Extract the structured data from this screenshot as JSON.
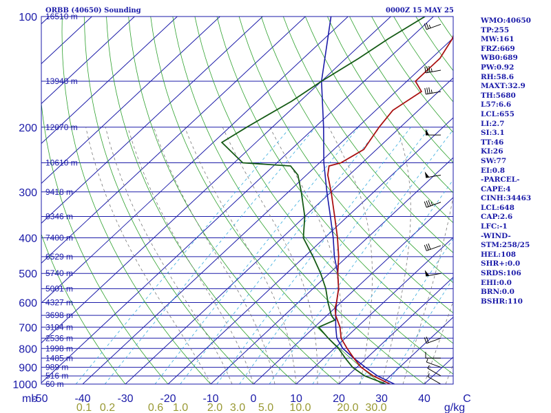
{
  "header": {
    "station": "ORBB (40650) Sounding",
    "time": "0000Z 15 MAY 25"
  },
  "indices": [
    "WMO:40650",
    "TP:255",
    "MW:161",
    "FRZ:669",
    "WB0:689",
    "PW:0.92",
    "RH:58.6",
    "MAXT:32.9",
    "TH:5680",
    "L57:6.6",
    "LCL:655",
    "LI:2.7",
    "SI:3.1",
    "TT:46",
    "KI:26",
    "SW:77",
    "EI:0.8",
    "-PARCEL-",
    "CAPE:4",
    "CINH:34463",
    "LCL:648",
    "CAP:2.6",
    "LFC:-1",
    "-WIND-",
    "STM:258/25",
    "HEL:108",
    "SHR+:0.0",
    "SRDS:106",
    "EHI:0.0",
    "BRN:0.0",
    "BSHR:110"
  ],
  "chart_data": {
    "type": "line",
    "title": "ORBB (40650) Sounding",
    "subtitle": "0000Z 15 MAY 25",
    "pressure_axis_unit": "mb",
    "pressure_ticks": [
      100,
      200,
      300,
      400,
      500,
      600,
      700,
      800,
      900,
      1000
    ],
    "temperature_ticks": [
      "-50",
      "-40",
      "-30",
      "-20",
      "-10",
      "0",
      "10",
      "20",
      "30",
      "40",
      "C"
    ],
    "mixing_ratio_unit": "g/kg",
    "mixing_ratio_labels": [
      "0.1",
      "0.2",
      "0.6",
      "1.0",
      "2.0",
      "3.0",
      "5.0",
      "10.0",
      "20.0",
      "30.0"
    ],
    "height_labels": [
      {
        "p": 100,
        "label": "16510 m"
      },
      {
        "p": 150,
        "label": "13940 m"
      },
      {
        "p": 200,
        "label": "12070 m"
      },
      {
        "p": 250,
        "label": "10610 m"
      },
      {
        "p": 300,
        "label": "9418 m"
      },
      {
        "p": 350,
        "label": "8346 m"
      },
      {
        "p": 400,
        "label": "7400 m"
      },
      {
        "p": 450,
        "label": "6529 m"
      },
      {
        "p": 500,
        "label": "5740 m"
      },
      {
        "p": 550,
        "label": "5001 m"
      },
      {
        "p": 600,
        "label": "4327 m"
      },
      {
        "p": 650,
        "label": "3698 m"
      },
      {
        "p": 700,
        "label": "3104 m"
      },
      {
        "p": 750,
        "label": "2536 m"
      },
      {
        "p": 800,
        "label": "1998 m"
      },
      {
        "p": 850,
        "label": "1485 m"
      },
      {
        "p": 900,
        "label": "989 m"
      },
      {
        "p": 950,
        "label": "516 m"
      },
      {
        "p": 1000,
        "label": "60 m"
      }
    ],
    "temperature_profile": [
      {
        "p": 1000,
        "t": 32
      },
      {
        "p": 950,
        "t": 26
      },
      {
        "p": 900,
        "t": 21
      },
      {
        "p": 850,
        "t": 17
      },
      {
        "p": 800,
        "t": 13
      },
      {
        "p": 750,
        "t": 9
      },
      {
        "p": 700,
        "t": 6
      },
      {
        "p": 650,
        "t": 2
      },
      {
        "p": 620,
        "t": 0
      },
      {
        "p": 600,
        "t": -1
      },
      {
        "p": 550,
        "t": -4
      },
      {
        "p": 500,
        "t": -8
      },
      {
        "p": 450,
        "t": -12
      },
      {
        "p": 400,
        "t": -17
      },
      {
        "p": 350,
        "t": -23
      },
      {
        "p": 300,
        "t": -30
      },
      {
        "p": 270,
        "t": -35
      },
      {
        "p": 255,
        "t": -37
      },
      {
        "p": 250,
        "t": -35
      },
      {
        "p": 230,
        "t": -33
      },
      {
        "p": 200,
        "t": -35
      },
      {
        "p": 180,
        "t": -36
      },
      {
        "p": 160,
        "t": -34
      },
      {
        "p": 150,
        "t": -38
      },
      {
        "p": 130,
        "t": -38
      },
      {
        "p": 115,
        "t": -40
      },
      {
        "p": 100,
        "t": -44
      }
    ],
    "dewpoint_profile": [
      {
        "p": 1000,
        "td": 31
      },
      {
        "p": 950,
        "td": 24
      },
      {
        "p": 900,
        "td": 19
      },
      {
        "p": 850,
        "td": 15
      },
      {
        "p": 800,
        "td": 11
      },
      {
        "p": 750,
        "td": 6
      },
      {
        "p": 700,
        "td": 1
      },
      {
        "p": 670,
        "td": 3
      },
      {
        "p": 650,
        "td": 1
      },
      {
        "p": 600,
        "td": -3
      },
      {
        "p": 550,
        "td": -7
      },
      {
        "p": 500,
        "td": -12
      },
      {
        "p": 450,
        "td": -18
      },
      {
        "p": 400,
        "td": -25
      },
      {
        "p": 350,
        "td": -30
      },
      {
        "p": 300,
        "td": -37
      },
      {
        "p": 270,
        "td": -42
      },
      {
        "p": 255,
        "td": -46
      },
      {
        "p": 250,
        "td": -58
      },
      {
        "p": 220,
        "td": -68
      },
      {
        "p": 200,
        "td": -66
      },
      {
        "p": 170,
        "td": -62
      },
      {
        "p": 150,
        "td": -60
      },
      {
        "p": 130,
        "td": -57
      },
      {
        "p": 115,
        "td": -55
      },
      {
        "p": 100,
        "td": -52
      }
    ],
    "parcel_path": [
      {
        "p": 1000,
        "t": 33
      },
      {
        "p": 950,
        "t": 27
      },
      {
        "p": 900,
        "t": 22
      },
      {
        "p": 850,
        "t": 17
      },
      {
        "p": 800,
        "t": 12
      },
      {
        "p": 750,
        "t": 8
      },
      {
        "p": 700,
        "t": 5
      },
      {
        "p": 650,
        "t": 2
      },
      {
        "p": 600,
        "t": -1
      },
      {
        "p": 550,
        "t": -4
      },
      {
        "p": 500,
        "t": -8
      },
      {
        "p": 450,
        "t": -13
      },
      {
        "p": 400,
        "t": -18
      },
      {
        "p": 350,
        "t": -24
      },
      {
        "p": 300,
        "t": -31
      },
      {
        "p": 250,
        "t": -39
      },
      {
        "p": 200,
        "t": -48
      },
      {
        "p": 150,
        "t": -60
      },
      {
        "p": 100,
        "t": -74
      }
    ],
    "wind_barbs": [
      {
        "p": 1000,
        "dir": 300,
        "spd": 5
      },
      {
        "p": 950,
        "dir": 300,
        "spd": 5
      },
      {
        "p": 900,
        "dir": 290,
        "spd": 5
      },
      {
        "p": 850,
        "dir": 270,
        "spd": 10
      },
      {
        "p": 750,
        "dir": 250,
        "spd": 20
      },
      {
        "p": 500,
        "dir": 260,
        "spd": 50
      },
      {
        "p": 420,
        "dir": 250,
        "spd": 30
      },
      {
        "p": 320,
        "dir": 250,
        "spd": 35
      },
      {
        "p": 270,
        "dir": 260,
        "spd": 50
      },
      {
        "p": 210,
        "dir": 270,
        "spd": 50
      },
      {
        "p": 160,
        "dir": 260,
        "spd": 35
      },
      {
        "p": 140,
        "dir": 260,
        "spd": 35
      },
      {
        "p": 105,
        "dir": 250,
        "spd": 25
      }
    ]
  }
}
